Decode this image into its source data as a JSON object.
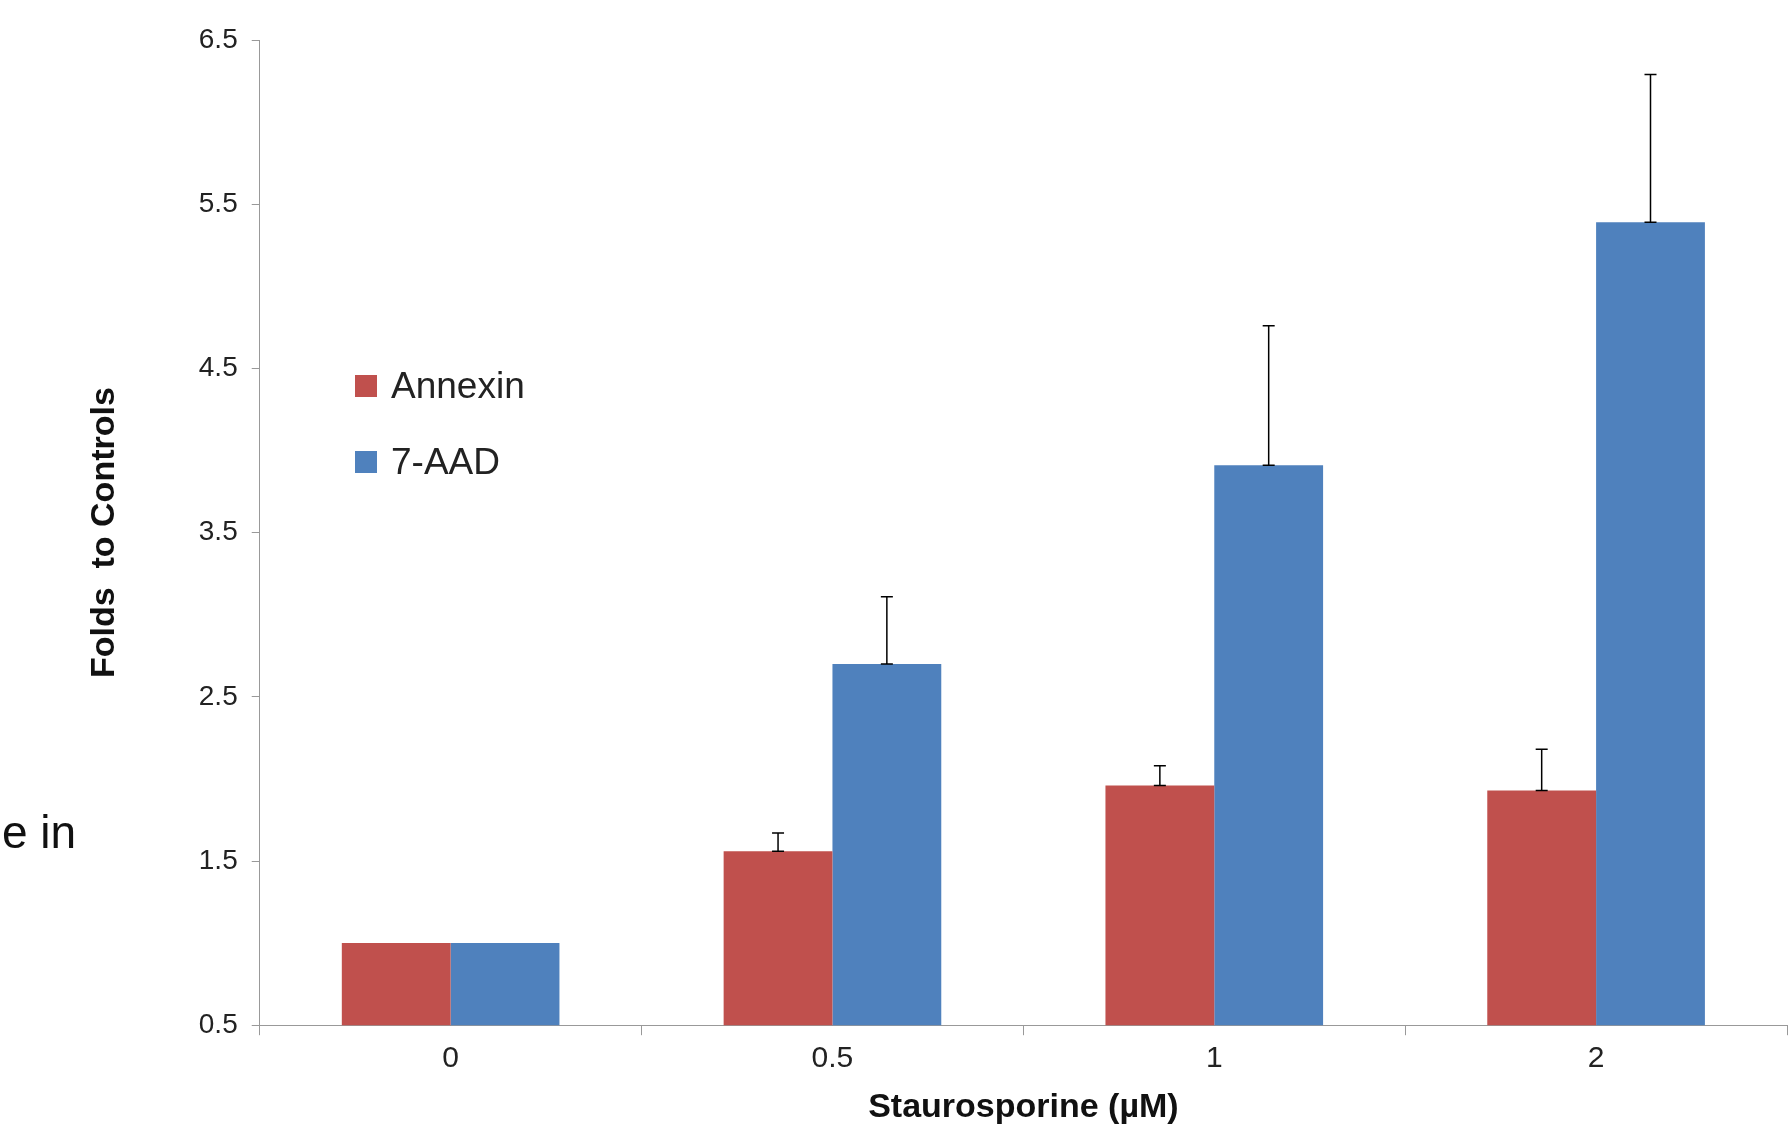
{
  "chart_data": {
    "type": "bar",
    "xlabel": "Staurosporine (µM)",
    "ylabel": "Folds  to Controls",
    "categories": [
      "0",
      "0.5",
      "1",
      "2"
    ],
    "series": [
      {
        "name": "Annexin",
        "color": "#c0504d",
        "values": [
          1.0,
          1.56,
          1.96,
          1.93
        ],
        "errors": [
          null,
          [
            1.56,
            1.67
          ],
          [
            1.96,
            2.08
          ],
          [
            1.93,
            2.18
          ]
        ]
      },
      {
        "name": "7-AAD",
        "color": "#4f81bd",
        "values": [
          1.0,
          2.7,
          3.91,
          5.39
        ],
        "errors": [
          null,
          [
            2.7,
            3.11
          ],
          [
            3.91,
            4.76
          ],
          [
            5.39,
            6.29
          ]
        ]
      }
    ],
    "ylim": [
      0.5,
      6.5
    ],
    "yticks": [
      0.5,
      1.5,
      2.5,
      3.5,
      4.5,
      5.5,
      6.5
    ],
    "legend": "top left",
    "annotations": [
      "e in"
    ]
  }
}
